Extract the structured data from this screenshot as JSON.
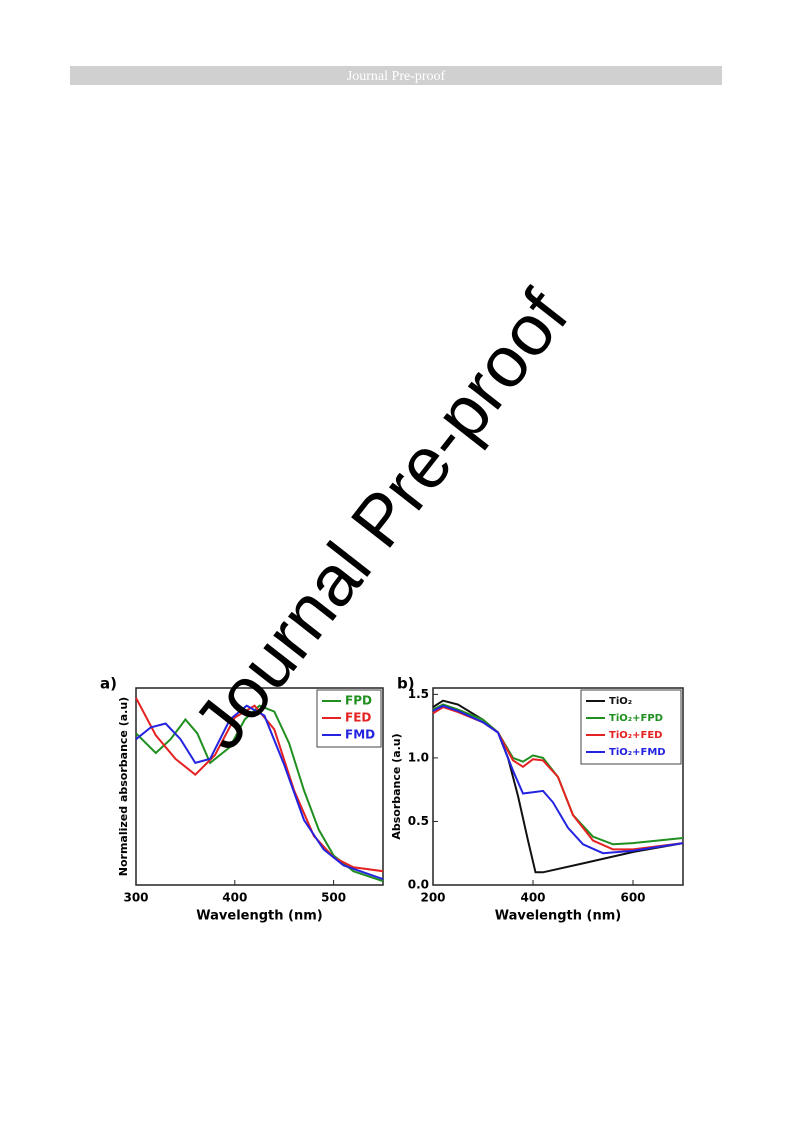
{
  "header": {
    "title": "Journal Pre-proof"
  },
  "watermark": "Journal Pre-proof",
  "chart_data": [
    {
      "type": "line",
      "panel": "a)",
      "x_label": "Wavelength (nm)",
      "y_label": "Normalized absorbance (a.u)",
      "xlim": [
        300,
        550
      ],
      "xticks": [
        300,
        400,
        500
      ],
      "ylim": [
        0,
        1
      ],
      "legend": "upper right",
      "series": [
        {
          "name": "FPD",
          "color": "#1f8f1f",
          "x": [
            300,
            320,
            335,
            350,
            362,
            375,
            395,
            410,
            425,
            440,
            455,
            470,
            485,
            500,
            520,
            550
          ],
          "values": [
            0.77,
            0.67,
            0.74,
            0.84,
            0.77,
            0.62,
            0.7,
            0.84,
            0.91,
            0.88,
            0.72,
            0.48,
            0.28,
            0.15,
            0.07,
            0.02
          ]
        },
        {
          "name": "FED",
          "color": "#e52222",
          "x": [
            300,
            320,
            340,
            360,
            380,
            400,
            420,
            440,
            460,
            480,
            500,
            520,
            550
          ],
          "values": [
            0.95,
            0.76,
            0.64,
            0.56,
            0.66,
            0.85,
            0.91,
            0.79,
            0.48,
            0.25,
            0.14,
            0.09,
            0.07
          ]
        },
        {
          "name": "FMD",
          "color": "#2323e0",
          "x": [
            300,
            315,
            330,
            345,
            360,
            375,
            395,
            412,
            430,
            450,
            470,
            490,
            510,
            550
          ],
          "values": [
            0.74,
            0.8,
            0.82,
            0.74,
            0.62,
            0.64,
            0.84,
            0.91,
            0.86,
            0.61,
            0.33,
            0.18,
            0.1,
            0.03
          ]
        }
      ]
    },
    {
      "type": "line",
      "panel": "b)",
      "x_label": "Wavelength (nm)",
      "y_label": "Absorbance (a.u)",
      "xlim": [
        200,
        700
      ],
      "xticks": [
        200,
        400,
        600
      ],
      "ylim": [
        0,
        1.55
      ],
      "yticks": [
        {
          "value": 0,
          "label": "0.0"
        },
        0.5,
        {
          "value": 1,
          "label": "1.0"
        },
        1.5
      ],
      "legend": "upper right",
      "series": [
        {
          "name": "TiO₂",
          "color": "#111111",
          "x": [
            200,
            220,
            250,
            300,
            330,
            350,
            370,
            390,
            405,
            420,
            500,
            600,
            700
          ],
          "values": [
            1.4,
            1.45,
            1.42,
            1.3,
            1.2,
            1.0,
            0.7,
            0.35,
            0.1,
            0.1,
            0.17,
            0.26,
            0.33
          ]
        },
        {
          "name": "TiO₂+FPD",
          "color": "#1f8f1f",
          "x": [
            200,
            220,
            250,
            300,
            330,
            360,
            380,
            400,
            420,
            450,
            480,
            520,
            560,
            600,
            700
          ],
          "values": [
            1.38,
            1.42,
            1.38,
            1.3,
            1.2,
            1.0,
            0.97,
            1.02,
            1.0,
            0.85,
            0.55,
            0.38,
            0.32,
            0.33,
            0.37
          ]
        },
        {
          "name": "TiO₂+FED",
          "color": "#e52222",
          "x": [
            200,
            220,
            250,
            300,
            330,
            360,
            380,
            400,
            420,
            450,
            480,
            520,
            560,
            600,
            700
          ],
          "values": [
            1.35,
            1.4,
            1.36,
            1.28,
            1.2,
            0.98,
            0.93,
            0.99,
            0.98,
            0.85,
            0.55,
            0.35,
            0.28,
            0.28,
            0.33
          ]
        },
        {
          "name": "TiO₂+FMD",
          "color": "#2323e0",
          "x": [
            200,
            220,
            250,
            300,
            330,
            360,
            380,
            400,
            420,
            440,
            470,
            500,
            540,
            600,
            700
          ],
          "values": [
            1.37,
            1.41,
            1.37,
            1.28,
            1.2,
            0.9,
            0.72,
            0.73,
            0.74,
            0.65,
            0.45,
            0.32,
            0.25,
            0.27,
            0.33
          ]
        }
      ]
    }
  ]
}
